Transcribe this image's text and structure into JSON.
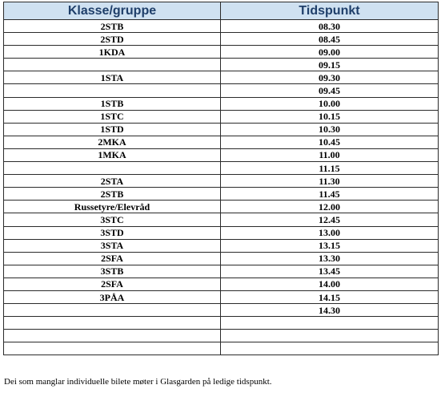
{
  "table": {
    "headers": [
      "Klasse/gruppe",
      "Tidspunkt"
    ],
    "rows": [
      [
        "2STB",
        "08.30"
      ],
      [
        "2STD",
        "08.45"
      ],
      [
        "1KDA",
        "09.00"
      ],
      [
        "",
        "09.15"
      ],
      [
        "1STA",
        "09.30"
      ],
      [
        "",
        "09.45"
      ],
      [
        "1STB",
        "10.00"
      ],
      [
        "1STC",
        "10.15"
      ],
      [
        "1STD",
        "10.30"
      ],
      [
        "2MKA",
        "10.45"
      ],
      [
        "1MKA",
        "11.00"
      ],
      [
        "",
        "11.15"
      ],
      [
        "2STA",
        "11.30"
      ],
      [
        "2STB",
        "11.45"
      ],
      [
        "Russetyre/Elevråd",
        "12.00"
      ],
      [
        "3STC",
        "12.45"
      ],
      [
        "3STD",
        "13.00"
      ],
      [
        "3STA",
        "13.15"
      ],
      [
        "2SFA",
        "13.30"
      ],
      [
        "3STB",
        "13.45"
      ],
      [
        "2SFA",
        "14.00"
      ],
      [
        "3PÅA",
        "14.15"
      ],
      [
        "",
        "14.30"
      ],
      [
        "",
        ""
      ],
      [
        "",
        ""
      ],
      [
        "",
        ""
      ]
    ]
  },
  "footnote": "Dei som manglar individuelle bilete møter i Glasgarden på ledige tidspunkt.",
  "colors": {
    "header_bg": "#cfe1f1",
    "header_text": "#1f3f6a",
    "border": "#2b2b2b"
  }
}
